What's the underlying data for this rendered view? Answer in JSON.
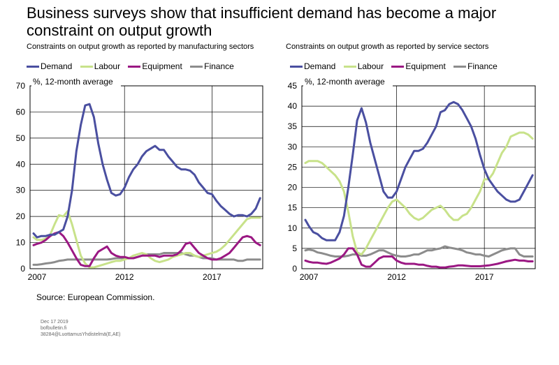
{
  "title": "Business surveys show that insufficient demand has become a major constraint on output growth",
  "source": "Source: European Commission.",
  "footer": [
    "Dec 17 2019",
    "bofbulletin.fi",
    "38284@LuottamusYhdistelmä(E,AE)"
  ],
  "colors": {
    "Demand": "#4a4fa0",
    "Labour": "#c8e28a",
    "Equipment": "#9b1883",
    "Finance": "#8c8c8c"
  },
  "chart_data": [
    {
      "type": "line",
      "title": "Constraints on output growth as reported by manufacturing sectors",
      "ylabel": "%, 12-month average",
      "xlim": [
        2006.6,
        2019.9
      ],
      "ylim": [
        0,
        70
      ],
      "yticks": [
        0,
        10,
        20,
        30,
        40,
        50,
        60,
        70
      ],
      "xticks": [
        2007,
        2012,
        2017
      ],
      "xgrid": [
        2012,
        2017
      ],
      "legend_position": "top",
      "x": [
        2006.8,
        2007.0,
        2007.25,
        2007.5,
        2007.75,
        2008.0,
        2008.25,
        2008.5,
        2008.75,
        2009.0,
        2009.25,
        2009.5,
        2009.75,
        2010.0,
        2010.25,
        2010.5,
        2010.75,
        2011.0,
        2011.25,
        2011.5,
        2011.75,
        2012.0,
        2012.25,
        2012.5,
        2012.75,
        2013.0,
        2013.25,
        2013.5,
        2013.75,
        2014.0,
        2014.25,
        2014.5,
        2014.75,
        2015.0,
        2015.25,
        2015.5,
        2015.75,
        2016.0,
        2016.25,
        2016.5,
        2016.75,
        2017.0,
        2017.25,
        2017.5,
        2017.75,
        2018.0,
        2018.25,
        2018.5,
        2018.75,
        2019.0,
        2019.25,
        2019.5,
        2019.75
      ],
      "series": [
        {
          "name": "Demand",
          "values": [
            13.5,
            12,
            12.5,
            12.5,
            13,
            13,
            14,
            15,
            20,
            30,
            45,
            55,
            62.5,
            63,
            58,
            48,
            40,
            34,
            29,
            28,
            28.5,
            31,
            35,
            38,
            40,
            43,
            45,
            46,
            47,
            45.5,
            45.5,
            43,
            41,
            39,
            38,
            38,
            37.5,
            36,
            33,
            31,
            29,
            28.5,
            26,
            24,
            22.5,
            21,
            20,
            20.5,
            20.5,
            20,
            21,
            23,
            27
          ]
        },
        {
          "name": "Labour",
          "values": [
            12,
            11,
            11,
            11.5,
            13,
            17,
            20.5,
            20,
            22,
            17,
            11,
            5,
            2,
            0.5,
            0.5,
            1,
            1.5,
            2,
            2.5,
            3,
            3,
            3.5,
            4,
            5,
            5.5,
            6,
            5.5,
            4,
            3,
            2.5,
            3,
            3.5,
            4.5,
            5,
            5.5,
            6,
            6,
            5,
            4.5,
            5,
            5.5,
            6,
            6.5,
            7.5,
            9,
            11,
            13,
            15,
            17,
            19,
            19.5,
            19.5,
            19.5
          ]
        },
        {
          "name": "Equipment",
          "values": [
            9,
            9.5,
            10,
            11,
            12.5,
            13.5,
            14,
            12.5,
            10,
            7,
            4,
            1.5,
            1,
            1,
            4,
            6.5,
            7.5,
            8.5,
            6,
            5,
            4.5,
            4.5,
            4,
            4,
            4.5,
            5,
            5,
            5,
            5,
            4.5,
            5,
            5,
            5,
            5.5,
            7,
            9.5,
            10,
            8,
            6,
            5,
            4,
            3.5,
            3.5,
            4,
            5,
            6,
            8,
            10,
            12,
            12.5,
            12,
            10,
            9
          ]
        },
        {
          "name": "Finance",
          "values": [
            1.5,
            1.5,
            1.7,
            2,
            2.2,
            2.5,
            3,
            3.2,
            3.5,
            3.5,
            3.5,
            3.5,
            3.5,
            3.5,
            3.5,
            3.5,
            3.5,
            3.5,
            3.7,
            4,
            4,
            4,
            4,
            4,
            4.5,
            5,
            5.5,
            5.5,
            5.5,
            5.5,
            6,
            6,
            6,
            6,
            6,
            5.5,
            5,
            5,
            4.5,
            4,
            4,
            4,
            3.5,
            3.5,
            3.5,
            3.5,
            3.5,
            3,
            3,
            3.5,
            3.5,
            3.5,
            3.5
          ]
        }
      ]
    },
    {
      "type": "line",
      "title": "Constraints on output growth as reported by service sectors",
      "ylabel": "%, 12-month average",
      "xlim": [
        2006.6,
        2019.9
      ],
      "ylim": [
        0,
        45
      ],
      "yticks": [
        0,
        5,
        10,
        15,
        20,
        25,
        30,
        35,
        40,
        45
      ],
      "xticks": [
        2007,
        2012,
        2017
      ],
      "xgrid": [
        2012,
        2017
      ],
      "legend_position": "top",
      "x": [
        2006.8,
        2007.0,
        2007.25,
        2007.5,
        2007.75,
        2008.0,
        2008.25,
        2008.5,
        2008.75,
        2009.0,
        2009.25,
        2009.5,
        2009.75,
        2010.0,
        2010.25,
        2010.5,
        2010.75,
        2011.0,
        2011.25,
        2011.5,
        2011.75,
        2012.0,
        2012.25,
        2012.5,
        2012.75,
        2013.0,
        2013.25,
        2013.5,
        2013.75,
        2014.0,
        2014.25,
        2014.5,
        2014.75,
        2015.0,
        2015.25,
        2015.5,
        2015.75,
        2016.0,
        2016.25,
        2016.5,
        2016.75,
        2017.0,
        2017.25,
        2017.5,
        2017.75,
        2018.0,
        2018.25,
        2018.5,
        2018.75,
        2019.0,
        2019.25,
        2019.5,
        2019.75
      ],
      "series": [
        {
          "name": "Demand",
          "values": [
            12,
            10.5,
            9,
            8.5,
            7.5,
            7,
            7,
            7,
            9,
            13,
            20,
            28,
            36.5,
            39.5,
            36,
            31,
            27,
            23,
            19,
            17.5,
            17.5,
            19,
            22,
            25,
            27,
            29,
            29,
            29.5,
            31,
            33,
            35,
            38.5,
            39,
            40.5,
            41,
            40.5,
            39,
            37,
            35,
            32,
            28,
            24.5,
            22,
            20.5,
            19,
            18,
            17,
            16.5,
            16.5,
            17,
            19,
            21,
            23
          ]
        },
        {
          "name": "Labour",
          "values": [
            26,
            26.5,
            26.5,
            26.5,
            26,
            25,
            24,
            23,
            21.5,
            19,
            14,
            8,
            4,
            3.5,
            5,
            7,
            9,
            11,
            13,
            15,
            16.5,
            17,
            16,
            15,
            13.5,
            12.5,
            12,
            12.5,
            13.5,
            14.5,
            15,
            15.5,
            14.5,
            13,
            12,
            12,
            13,
            13.5,
            15,
            17,
            19,
            22,
            22,
            23.5,
            26,
            28.5,
            30,
            32.5,
            33,
            33.5,
            33.5,
            33,
            32
          ]
        },
        {
          "name": "Equipment",
          "values": [
            2,
            1.7,
            1.5,
            1.5,
            1.3,
            1.2,
            1.5,
            2,
            2.5,
            3.5,
            5,
            5,
            3.5,
            1,
            0.5,
            0.5,
            1.5,
            2.5,
            3,
            3,
            3,
            2,
            1.5,
            1.2,
            1.2,
            1.2,
            1,
            1,
            0.7,
            0.5,
            0.5,
            0.3,
            0.3,
            0.5,
            0.6,
            0.8,
            0.8,
            0.7,
            0.6,
            0.6,
            0.6,
            0.7,
            0.8,
            1,
            1.2,
            1.5,
            1.8,
            2,
            2.2,
            2,
            2,
            1.8,
            1.8
          ]
        },
        {
          "name": "Finance",
          "values": [
            4.5,
            4.7,
            4.5,
            4,
            3.8,
            3.5,
            3.2,
            3,
            3,
            3,
            3.2,
            3.5,
            3.5,
            3.2,
            3.2,
            3.5,
            4,
            4.5,
            4.5,
            4,
            3.5,
            3.2,
            3,
            3,
            3.2,
            3.5,
            3.5,
            4,
            4.5,
            4.5,
            4.8,
            5,
            5.5,
            5.2,
            5,
            4.8,
            4.5,
            4,
            3.8,
            3.5,
            3.5,
            3.2,
            3,
            3.5,
            4,
            4.5,
            4.8,
            5,
            5,
            3.5,
            3,
            3,
            3
          ]
        }
      ]
    }
  ]
}
